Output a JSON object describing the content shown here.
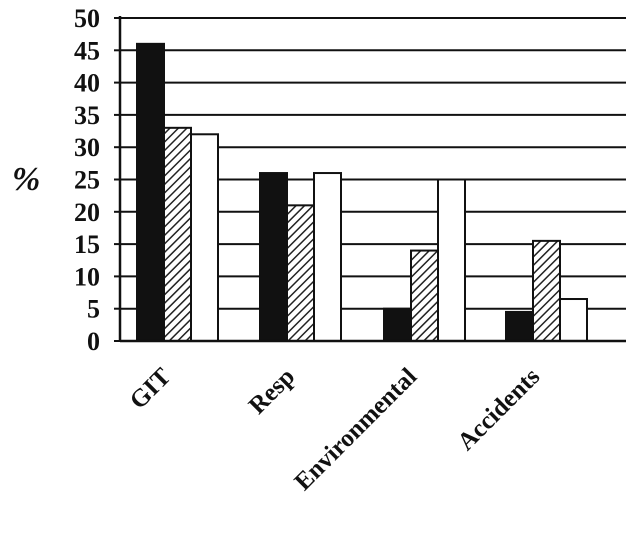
{
  "chart_data": {
    "type": "bar",
    "ylabel": "%",
    "ylim": [
      0,
      50
    ],
    "ytick_labels": [
      "0",
      "5",
      "10",
      "15",
      "20",
      "25",
      "30",
      "35",
      "40",
      "45",
      "50"
    ],
    "categories": [
      "GIT",
      "Resp",
      "Environmental",
      "Accidents"
    ],
    "series": [
      {
        "values": [
          46,
          26,
          5,
          4.5
        ],
        "color": "#111111",
        "fill": "solid-black"
      },
      {
        "values": [
          33,
          21,
          14,
          15.5
        ],
        "color": "#555555",
        "fill": "diagonal-hatch"
      },
      {
        "values": [
          32,
          26,
          25,
          6.5
        ],
        "color": "#ffffff",
        "fill": "white"
      }
    ],
    "grid": true,
    "legend": "none"
  }
}
